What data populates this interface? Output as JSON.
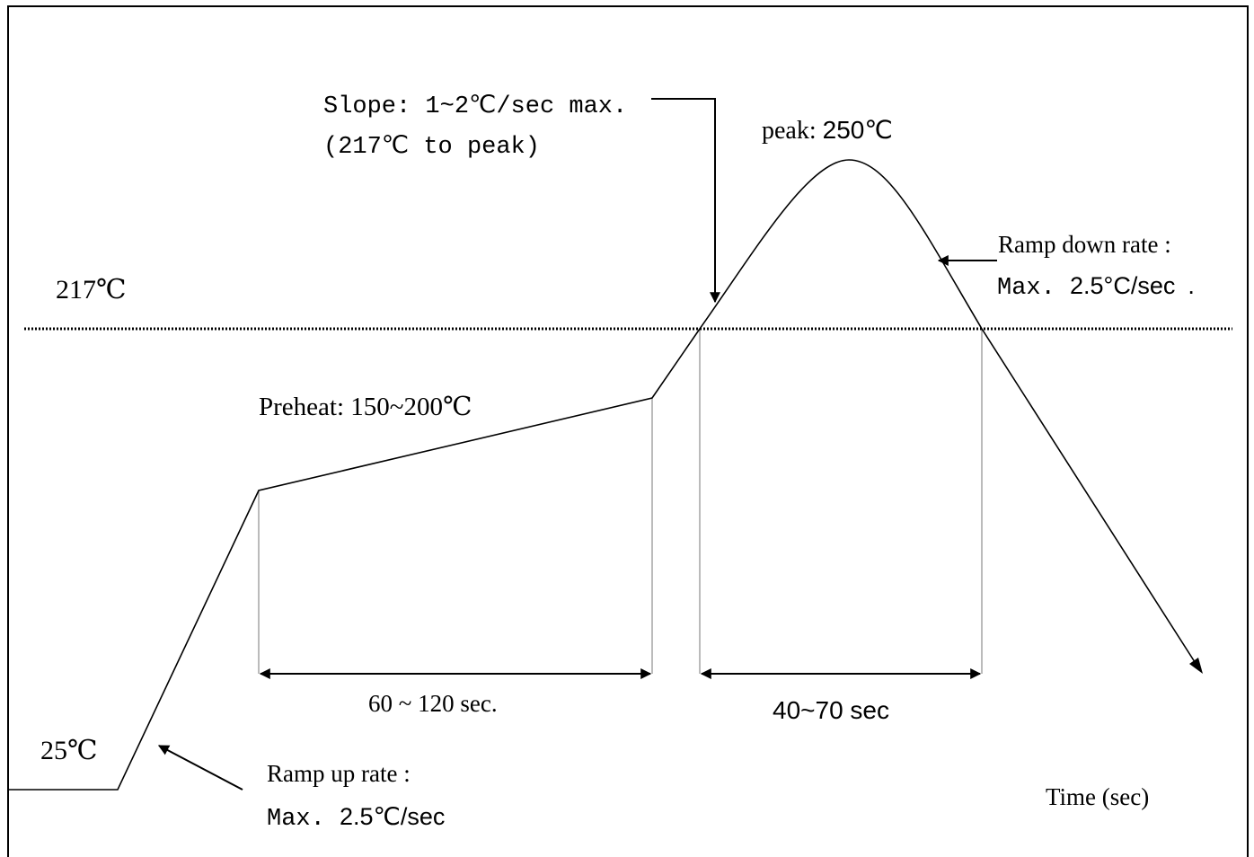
{
  "diagram": {
    "labels": {
      "slope_line1": "Slope: 1~2℃/sec max.",
      "slope_line2": "(217℃ to peak)",
      "peak_prefix": "peak: ",
      "peak_value": "250℃",
      "ramp_down_line1": "Ramp down rate :",
      "ramp_down_prefix": "Max. ",
      "ramp_down_value": "2.5°C/sec",
      "ramp_down_suffix": ".",
      "liquidus_temp": "217℃",
      "preheat": "Preheat: 150~200℃",
      "preheat_duration": "60 ~ 120 sec.",
      "reflow_duration": "40~70 sec",
      "start_temp": "25℃",
      "ramp_up_line1": "Ramp up rate :",
      "ramp_up_prefix": "Max. ",
      "ramp_up_value": "2.5℃/sec",
      "time_axis": "Time (sec)"
    },
    "colors": {
      "line": "#000000",
      "guide": "#777777",
      "background": "#ffffff"
    }
  }
}
